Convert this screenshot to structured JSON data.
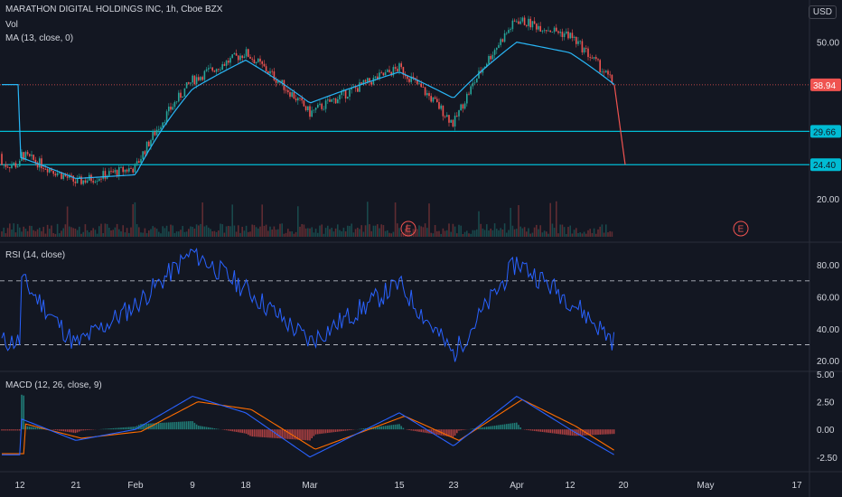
{
  "header": {
    "symbol_line": "MARATHON DIGITAL HOLDINGS INC, 1h, Cboe BZX",
    "vol_label": "Vol",
    "ma_label": "MA (13, close, 0)",
    "currency": "USD"
  },
  "rsi_label": "RSI (14, close)",
  "macd_label": "MACD (12, 26, close, 9)",
  "earnings_marker": "E",
  "price_tags": {
    "last": "38.94",
    "level1": "29.66",
    "level2": "24.40"
  },
  "colors": {
    "background": "#131722",
    "up": "#26a69a",
    "down": "#ef5350",
    "ma": "#29b6f6",
    "hline": "#00bcd4",
    "rsi": "#2962ff",
    "macd": "#2962ff",
    "signal": "#ff6d00"
  },
  "chart_data": [
    {
      "type": "line",
      "panel": "price",
      "series": [
        {
          "name": "MA (13, close, 0)",
          "x": [
            "12",
            "21",
            "Feb",
            "9",
            "18",
            "Mar",
            "15",
            "23",
            "Apr",
            "12",
            "18"
          ],
          "values": [
            25.5,
            22.5,
            23.0,
            38.0,
            45.0,
            35.0,
            42.0,
            36.0,
            50.0,
            47.0,
            39.0
          ]
        }
      ],
      "price_path": {
        "x": [
          "12",
          "21",
          "Feb",
          "9",
          "18",
          "Mar",
          "15",
          "23",
          "Apr",
          "12",
          "18",
          "19"
        ],
        "values": [
          26,
          22,
          24,
          40,
          47,
          33,
          43,
          31,
          57,
          52,
          38.94,
          24.4
        ]
      },
      "horizontal_levels": [
        29.66,
        24.4
      ],
      "last_price": 38.94,
      "y_ticks": [
        50.0,
        20.0
      ],
      "x_ticks": [
        "12",
        "21",
        "Feb",
        "9",
        "18",
        "Mar",
        "15",
        "23",
        "Apr",
        "12",
        "20",
        "May",
        "17"
      ],
      "y_scale": "log"
    },
    {
      "type": "line",
      "panel": "rsi",
      "series": [
        {
          "name": "RSI (14, close)",
          "x": [
            "12",
            "21",
            "Feb",
            "9",
            "18",
            "Mar",
            "15",
            "23",
            "Apr",
            "12",
            "18"
          ],
          "values": [
            72,
            30,
            55,
            88,
            65,
            32,
            68,
            24,
            82,
            58,
            32
          ]
        }
      ],
      "levels": [
        70,
        30
      ],
      "y_ticks": [
        80.0,
        60.0,
        40.0,
        20.0
      ],
      "ylim": [
        15,
        92
      ]
    },
    {
      "type": "line",
      "panel": "macd",
      "series": [
        {
          "name": "MACD",
          "x": [
            "12",
            "21",
            "Feb",
            "9",
            "18",
            "Mar",
            "15",
            "23",
            "Apr",
            "12",
            "18"
          ],
          "values": [
            1.0,
            -1.0,
            0.0,
            3.0,
            1.5,
            -2.5,
            1.5,
            -1.5,
            3.0,
            0.0,
            -2.3
          ]
        },
        {
          "name": "Signal",
          "x": [
            "12",
            "21",
            "Feb",
            "9",
            "18",
            "Mar",
            "15",
            "23",
            "Apr",
            "12",
            "18"
          ],
          "values": [
            0.5,
            -0.8,
            -0.2,
            2.5,
            1.8,
            -1.8,
            1.2,
            -1.0,
            2.7,
            0.3,
            -2.2
          ]
        }
      ],
      "y_ticks": [
        5.0,
        2.5,
        0.0,
        -2.5
      ],
      "ylim": [
        -3.5,
        5
      ]
    }
  ]
}
